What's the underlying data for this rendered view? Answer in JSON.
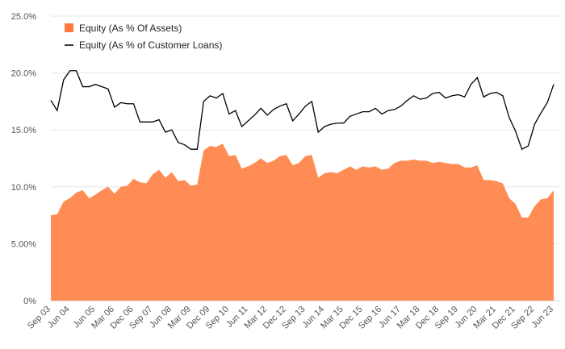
{
  "chart_data": {
    "type": "area",
    "colors": {
      "assets_fill": "#ff8c55",
      "assets_legend": "#ff7a3c",
      "loans_line": "#000000",
      "grid": "#e6e6e6",
      "text": "#555555"
    },
    "legend_placement": "top-left",
    "grid": true,
    "ylim": [
      0,
      25
    ],
    "y_ticks": [
      0,
      5,
      10,
      15,
      20,
      25
    ],
    "y_tick_labels": [
      "0%",
      "5.00%",
      "10.0%",
      "15.0%",
      "20.0%",
      "25.0%"
    ],
    "x_tick_labels": [
      "Sep 03",
      "Jun 04",
      "Jun 05",
      "Mar 06",
      "Dec 06",
      "Sep 07",
      "Jun 08",
      "Mar 09",
      "Dec 09",
      "Sep 10",
      "Jun 11",
      "Mar 12",
      "Dec 12",
      "Sep 13",
      "Jun 14",
      "Mar 15",
      "Dec 15",
      "Sep 16",
      "Jun 17",
      "Mar 18",
      "Dec 18",
      "Sep 19",
      "Jun 20",
      "Mar 21",
      "Dec 21",
      "Sep 22",
      "Jun 23"
    ],
    "x_tick_indices": [
      0,
      3,
      7,
      10,
      13,
      16,
      19,
      22,
      25,
      28,
      31,
      34,
      37,
      40,
      43,
      46,
      49,
      52,
      55,
      58,
      61,
      64,
      67,
      70,
      73,
      76,
      79
    ],
    "series": [
      {
        "name": "Equity (As % Of Assets)",
        "kind": "area",
        "values": [
          7.5,
          7.6,
          8.7,
          9.0,
          9.5,
          9.7,
          9.0,
          9.3,
          9.7,
          10.0,
          9.4,
          10.0,
          10.1,
          10.7,
          10.4,
          10.3,
          11.1,
          11.5,
          10.8,
          11.3,
          10.5,
          10.6,
          10.1,
          10.2,
          13.2,
          13.6,
          13.5,
          13.8,
          12.7,
          12.8,
          11.6,
          11.8,
          12.1,
          12.5,
          12.1,
          12.3,
          12.7,
          12.8,
          11.9,
          12.1,
          12.7,
          12.8,
          10.8,
          11.2,
          11.3,
          11.2,
          11.5,
          11.8,
          11.5,
          11.8,
          11.7,
          11.8,
          11.5,
          11.6,
          12.1,
          12.3,
          12.3,
          12.4,
          12.3,
          12.3,
          12.1,
          12.2,
          12.1,
          12.0,
          12.0,
          11.7,
          11.7,
          11.9,
          10.6,
          10.6,
          10.5,
          10.3,
          9.0,
          8.5,
          7.3,
          7.3,
          8.3,
          8.9,
          9.0,
          9.7
        ]
      },
      {
        "name": "Equity (As % of Customer Loans)",
        "kind": "line",
        "values": [
          17.6,
          16.7,
          19.4,
          20.2,
          20.2,
          18.8,
          18.8,
          19.0,
          18.8,
          18.6,
          17.0,
          17.4,
          17.3,
          17.3,
          15.7,
          15.7,
          15.7,
          15.9,
          14.8,
          15.0,
          13.9,
          13.7,
          13.3,
          13.3,
          17.5,
          18.0,
          17.8,
          18.2,
          16.4,
          16.7,
          15.3,
          15.8,
          16.3,
          16.9,
          16.3,
          16.8,
          17.1,
          17.3,
          15.8,
          16.4,
          17.1,
          17.5,
          14.8,
          15.3,
          15.5,
          15.6,
          15.6,
          16.2,
          16.4,
          16.6,
          16.6,
          16.9,
          16.4,
          16.7,
          16.8,
          17.1,
          17.6,
          18.0,
          17.7,
          17.8,
          18.2,
          18.3,
          17.8,
          18.0,
          18.1,
          17.9,
          19.0,
          19.6,
          17.9,
          18.2,
          18.3,
          18.0,
          16.1,
          14.9,
          13.3,
          13.6,
          15.5,
          16.5,
          17.4,
          19.0
        ]
      }
    ]
  }
}
